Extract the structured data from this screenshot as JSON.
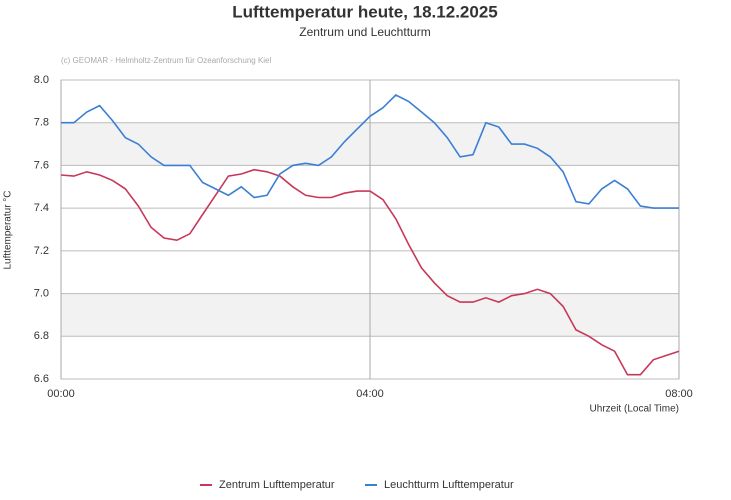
{
  "chart_data": {
    "type": "line",
    "title": "Lufttemperatur heute, 18.12.2025",
    "subtitle": "Zentrum und Leuchtturm",
    "credit": "(c) GEOMAR - Helmholtz-Zentrum für Ozeanforschung Kiel",
    "x_label": "Uhrzeit (Local Time)",
    "y_label": "Lufttemperatur °C",
    "x": [
      0,
      10,
      20,
      30,
      40,
      50,
      60,
      70,
      80,
      90,
      100,
      110,
      120,
      130,
      140,
      150,
      160,
      170,
      180,
      190,
      200,
      210,
      220,
      230,
      240,
      250,
      260,
      270,
      280,
      290,
      300,
      310,
      320,
      330,
      340,
      350,
      360,
      370,
      380,
      390,
      400,
      410,
      420,
      430,
      440,
      450,
      460,
      470,
      480
    ],
    "xlim": [
      0,
      480
    ],
    "xticks": [
      {
        "value": 0,
        "label": "00:00"
      },
      {
        "value": 240,
        "label": "04:00"
      },
      {
        "value": 480,
        "label": "08:00"
      }
    ],
    "ylim": [
      6.6,
      8.0
    ],
    "yticks": [
      6.6,
      6.8,
      {
        "value": 7,
        "label": "7.0"
      },
      7.2,
      7.4,
      7.6,
      7.8,
      {
        "value": 8,
        "label": "8.0"
      }
    ],
    "grid": true,
    "legend": "bottom",
    "series": [
      {
        "name": "Zentrum Lufttemperatur",
        "color": "#c8385a",
        "values": [
          7.555,
          7.55,
          7.57,
          7.555,
          7.53,
          7.49,
          7.41,
          7.31,
          7.26,
          7.25,
          7.28,
          7.37,
          7.46,
          7.55,
          7.56,
          7.58,
          7.57,
          7.55,
          7.5,
          7.46,
          7.45,
          7.45,
          7.47,
          7.48,
          7.48,
          7.44,
          7.35,
          7.23,
          7.12,
          7.05,
          6.99,
          6.96,
          6.96,
          6.98,
          6.96,
          6.99,
          7.0,
          7.02,
          7.0,
          6.94,
          6.83,
          6.8,
          6.76,
          6.73,
          6.62,
          6.62,
          6.69,
          6.71,
          6.73
        ]
      },
      {
        "name": "Leuchtturm Lufttemperatur",
        "color": "#3a7fd5",
        "values": [
          7.8,
          7.8,
          7.85,
          7.88,
          7.81,
          7.73,
          7.7,
          7.64,
          7.6,
          7.6,
          7.6,
          7.52,
          7.49,
          7.46,
          7.5,
          7.45,
          7.46,
          7.56,
          7.6,
          7.61,
          7.6,
          7.64,
          7.71,
          7.77,
          7.83,
          7.87,
          7.93,
          7.9,
          7.85,
          7.8,
          7.73,
          7.64,
          7.65,
          7.8,
          7.78,
          7.7,
          7.7,
          7.68,
          7.64,
          7.57,
          7.43,
          7.42,
          7.49,
          7.53,
          7.49,
          7.41,
          7.4,
          7.4,
          7.4
        ]
      }
    ]
  }
}
